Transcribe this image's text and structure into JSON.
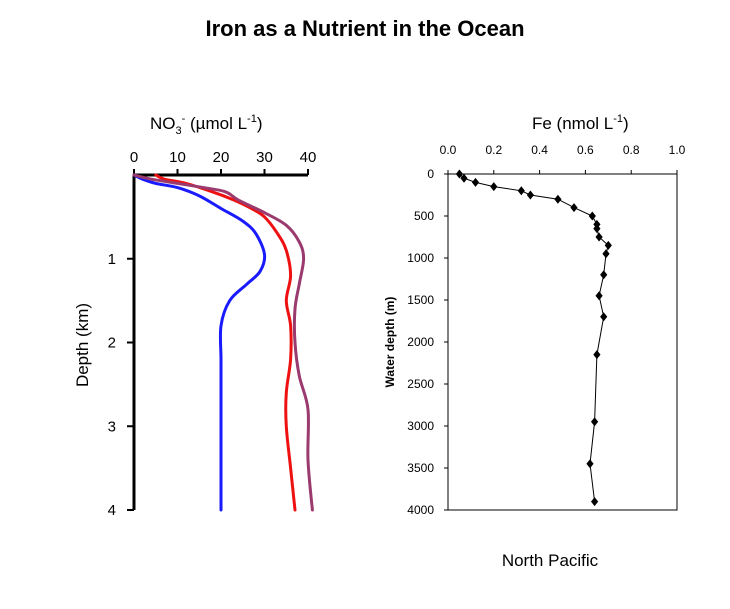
{
  "page": {
    "title": "Iron as a Nutrient in the Ocean",
    "caption": "North Pacific"
  },
  "chart_data": [
    {
      "type": "line",
      "xlabel_prefix": "NO",
      "xlabel_sub": "3",
      "xlabel_sup": "-",
      "xlabel_rest": " (µmol L",
      "xlabel_exp": "-1",
      "xlabel_close": ")",
      "ylabel": "Depth (km)",
      "x_axis_position": "top",
      "y_inverted": true,
      "xlim": [
        0,
        40
      ],
      "ylim": [
        0,
        4
      ],
      "x_ticks": [
        "0",
        "10",
        "20",
        "30",
        "40"
      ],
      "x_tick_values": [
        0,
        10,
        20,
        30,
        40
      ],
      "y_ticks": [
        "1",
        "2",
        "3",
        "4"
      ],
      "y_tick_values": [
        1,
        2,
        3,
        4
      ],
      "series": [
        {
          "color": "#1a1aff",
          "x": [
            0,
            2,
            5,
            10,
            15,
            20,
            25,
            28,
            30,
            29,
            26,
            22,
            20,
            20,
            20,
            20,
            20,
            20
          ],
          "y": [
            0,
            0.05,
            0.1,
            0.15,
            0.25,
            0.4,
            0.55,
            0.7,
            0.95,
            1.15,
            1.3,
            1.5,
            1.8,
            2.2,
            2.6,
            3.0,
            3.5,
            4.0
          ]
        },
        {
          "color": "#ee1111",
          "x": [
            5,
            7,
            12,
            18,
            23,
            27,
            30,
            33,
            35,
            36,
            35,
            36,
            36,
            35,
            35,
            36,
            37
          ],
          "y": [
            0,
            0.05,
            0.1,
            0.2,
            0.3,
            0.4,
            0.5,
            0.7,
            0.9,
            1.2,
            1.5,
            1.8,
            2.2,
            2.6,
            3.0,
            3.5,
            4.0
          ]
        },
        {
          "color": "#9b3a6e",
          "x": [
            0,
            4,
            10,
            16,
            21,
            24,
            30,
            35,
            38,
            39,
            38,
            37,
            37,
            38,
            40,
            40,
            41
          ],
          "y": [
            0,
            0.05,
            0.1,
            0.15,
            0.2,
            0.3,
            0.45,
            0.6,
            0.8,
            1.0,
            1.3,
            1.6,
            2.0,
            2.4,
            2.8,
            3.4,
            4.0
          ]
        }
      ]
    },
    {
      "type": "line",
      "xlabel_prefix": "Fe (nmol L",
      "xlabel_exp": "-1",
      "xlabel_close": ")",
      "ylabel": "Water depth (m)",
      "x_axis_position": "top",
      "y_inverted": true,
      "xlim": [
        0,
        1.0
      ],
      "ylim": [
        0,
        4000
      ],
      "x_ticks": [
        "0.0",
        "0.2",
        "0.4",
        "0.6",
        "0.8",
        "1.0"
      ],
      "x_tick_values": [
        0,
        0.2,
        0.4,
        0.6,
        0.8,
        1.0
      ],
      "y_ticks": [
        "0",
        "500",
        "1000",
        "1500",
        "2000",
        "2500",
        "3000",
        "3500",
        "4000"
      ],
      "y_tick_values": [
        0,
        500,
        1000,
        1500,
        2000,
        2500,
        3000,
        3500,
        4000
      ],
      "marker": "diamond",
      "series": [
        {
          "color": "#000000",
          "x": [
            0.05,
            0.07,
            0.12,
            0.2,
            0.32,
            0.36,
            0.48,
            0.55,
            0.63,
            0.65,
            0.65,
            0.66,
            0.7,
            0.69,
            0.68,
            0.66,
            0.68,
            0.65,
            0.64,
            0.62,
            0.64
          ],
          "y": [
            0,
            50,
            100,
            150,
            200,
            250,
            300,
            400,
            500,
            600,
            650,
            750,
            850,
            950,
            1200,
            1450,
            1700,
            2150,
            2950,
            3450,
            3900
          ]
        }
      ]
    }
  ]
}
